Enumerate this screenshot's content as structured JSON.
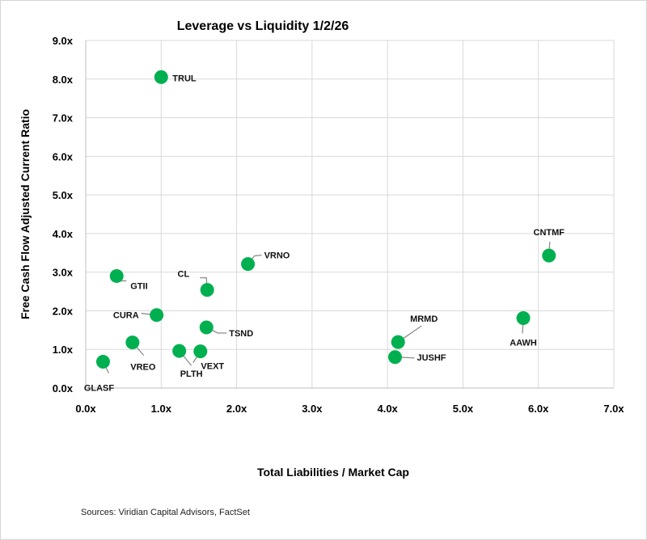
{
  "chart_data": {
    "type": "scatter",
    "title": "Leverage vs Liquidity 1/2/26",
    "xlabel": "Total Liabilities / Market Cap",
    "ylabel": "Free Cash Flow Adjusted Current Ratio",
    "xlim": [
      0,
      7
    ],
    "ylim": [
      0,
      9
    ],
    "x_ticks": [
      "0.0x",
      "1.0x",
      "2.0x",
      "3.0x",
      "4.0x",
      "5.0x",
      "6.0x",
      "7.0x"
    ],
    "y_ticks": [
      "0.0x",
      "1.0x",
      "2.0x",
      "3.0x",
      "4.0x",
      "5.0x",
      "6.0x",
      "7.0x",
      "8.0x",
      "9.0x"
    ],
    "grid": true,
    "legend": "none",
    "marker_color": "#00B050",
    "points": [
      {
        "label": "TRUL",
        "x": 1.0,
        "y": 8.05
      },
      {
        "label": "VRNO",
        "x": 2.15,
        "y": 3.21
      },
      {
        "label": "CNTMF",
        "x": 6.14,
        "y": 3.43
      },
      {
        "label": "GTII",
        "x": 0.41,
        "y": 2.9
      },
      {
        "label": "CL",
        "x": 1.61,
        "y": 2.54
      },
      {
        "label": "CURA",
        "x": 0.94,
        "y": 1.89
      },
      {
        "label": "AAWH",
        "x": 5.8,
        "y": 1.81
      },
      {
        "label": "TSND",
        "x": 1.6,
        "y": 1.57
      },
      {
        "label": "MRMD",
        "x": 4.14,
        "y": 1.19
      },
      {
        "label": "VREO",
        "x": 0.62,
        "y": 1.18
      },
      {
        "label": "PLTH",
        "x": 1.24,
        "y": 0.96
      },
      {
        "label": "VEXT",
        "x": 1.52,
        "y": 0.95
      },
      {
        "label": "JUSHF",
        "x": 4.1,
        "y": 0.8
      },
      {
        "label": "GLASF",
        "x": 0.23,
        "y": 0.68
      }
    ]
  },
  "footer": {
    "sources": "Sources: Viridian Capital Advisors, FactSet"
  }
}
